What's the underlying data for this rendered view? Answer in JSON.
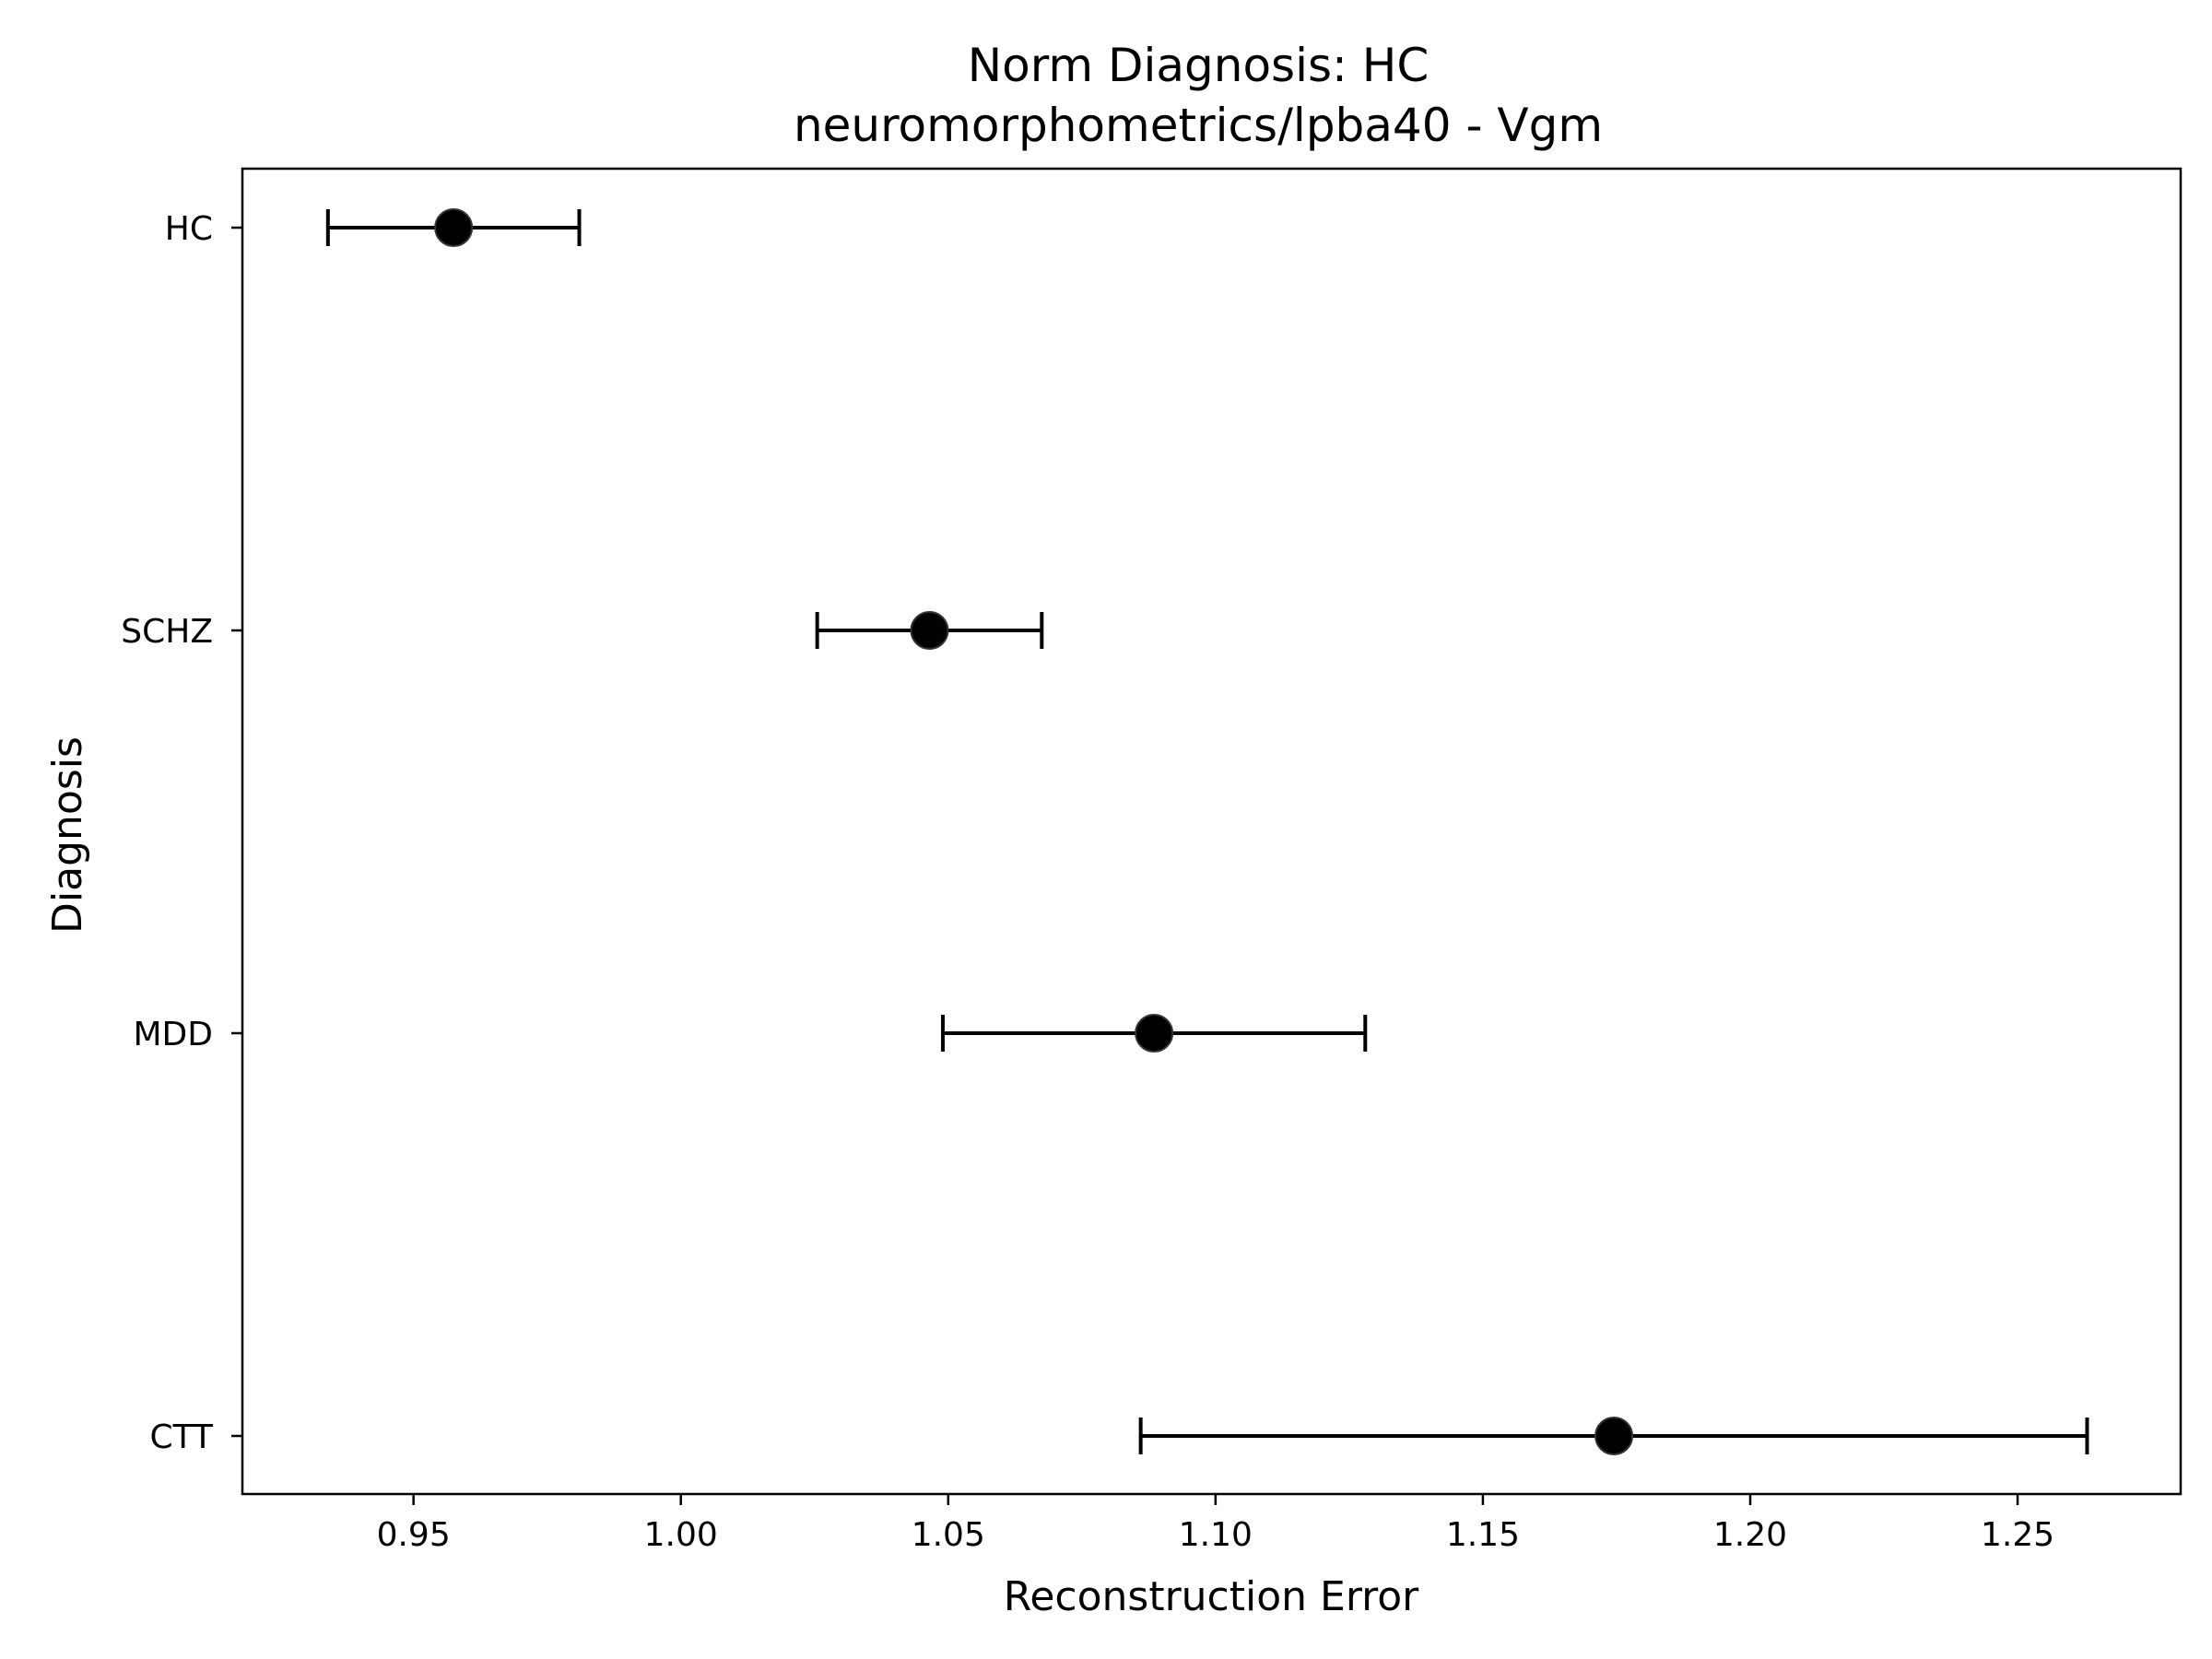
{
  "chart_data": {
    "type": "scatter",
    "title": "Norm Diagnosis: HC",
    "subtitle": "neuromorphometrics/lpba40 - Vgm",
    "xlabel": "Reconstruction Error",
    "ylabel": "Diagnosis",
    "xlim": [
      0.918,
      1.2805
    ],
    "xticks": [
      "0.95",
      "1.00",
      "1.05",
      "1.10",
      "1.15",
      "1.20",
      "1.25"
    ],
    "xtick_values": [
      0.95,
      1.0,
      1.05,
      1.1,
      1.15,
      1.2,
      1.25
    ],
    "categories": [
      "HC",
      "SCHZ",
      "MDD",
      "CTT"
    ],
    "points": [
      {
        "category": "HC",
        "mean": 0.9575,
        "err_low": 0.934,
        "err_high": 0.981
      },
      {
        "category": "SCHZ",
        "mean": 1.0465,
        "err_low": 1.0255,
        "err_high": 1.0675
      },
      {
        "category": "MDD",
        "mean": 1.0885,
        "err_low": 1.049,
        "err_high": 1.128
      },
      {
        "category": "CTT",
        "mean": 1.1745,
        "err_low": 1.086,
        "err_high": 1.263
      }
    ],
    "grid": false,
    "marker_color": "#000000",
    "errorbar_color": "#000000"
  }
}
